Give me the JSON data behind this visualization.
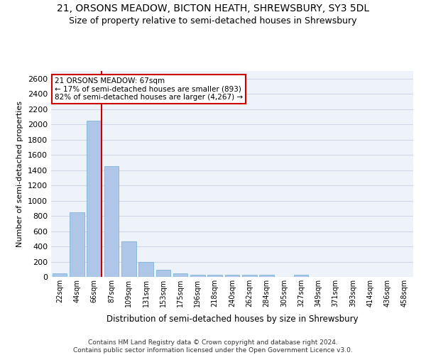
{
  "title_line1": "21, ORSONS MEADOW, BICTON HEATH, SHREWSBURY, SY3 5DL",
  "title_line2": "Size of property relative to semi-detached houses in Shrewsbury",
  "xlabel": "Distribution of semi-detached houses by size in Shrewsbury",
  "ylabel": "Number of semi-detached properties",
  "footnote": "Contains HM Land Registry data © Crown copyright and database right 2024.\nContains public sector information licensed under the Open Government Licence v3.0.",
  "annotation_title": "21 ORSONS MEADOW: 67sqm",
  "annotation_line2": "← 17% of semi-detached houses are smaller (893)",
  "annotation_line3": "82% of semi-detached houses are larger (4,267) →",
  "bar_color": "#aec6e8",
  "bar_edge_color": "#6baed6",
  "vline_color": "#cc0000",
  "annotation_box_color": "#cc0000",
  "categories": [
    "22sqm",
    "44sqm",
    "66sqm",
    "87sqm",
    "109sqm",
    "131sqm",
    "153sqm",
    "175sqm",
    "196sqm",
    "218sqm",
    "240sqm",
    "262sqm",
    "284sqm",
    "305sqm",
    "327sqm",
    "349sqm",
    "371sqm",
    "393sqm",
    "414sqm",
    "436sqm",
    "458sqm"
  ],
  "values": [
    50,
    850,
    2050,
    1450,
    470,
    200,
    95,
    42,
    30,
    30,
    28,
    28,
    28,
    0,
    28,
    0,
    0,
    0,
    0,
    0,
    0
  ],
  "ylim": [
    0,
    2700
  ],
  "yticks": [
    0,
    200,
    400,
    600,
    800,
    1000,
    1200,
    1400,
    1600,
    1800,
    2000,
    2200,
    2400,
    2600
  ],
  "grid_color": "#d0d8e8",
  "background_color": "#eef2f9",
  "title_fontsize": 10,
  "subtitle_fontsize": 9,
  "footnote_fontsize": 6.5
}
